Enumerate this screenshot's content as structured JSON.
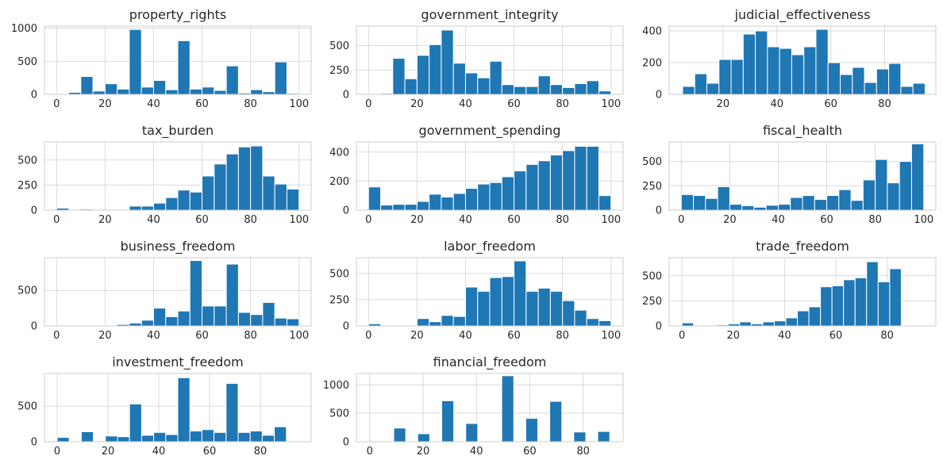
{
  "chart_data": [
    {
      "type": "bar",
      "title": "property_rights",
      "xlim": [
        -5,
        105
      ],
      "ylim": [
        0,
        1030
      ],
      "xticks": [
        0,
        20,
        40,
        60,
        80,
        100
      ],
      "yticks": [
        0,
        500,
        1000
      ],
      "bin_edges": [
        5,
        10,
        15,
        20,
        25,
        30,
        35,
        40,
        45,
        50,
        55,
        60,
        65,
        70,
        75,
        80,
        85,
        90,
        95,
        100
      ],
      "values": [
        30,
        270,
        50,
        160,
        80,
        980,
        110,
        210,
        70,
        810,
        80,
        110,
        60,
        430,
        20,
        70,
        40,
        490,
        15
      ]
    },
    {
      "type": "bar",
      "title": "government_integrity",
      "xlim": [
        -5,
        105
      ],
      "ylim": [
        0,
        700
      ],
      "xticks": [
        0,
        20,
        40,
        60,
        80,
        100
      ],
      "yticks": [
        0,
        250,
        500
      ],
      "bin_edges": [
        5,
        10,
        15,
        20,
        25,
        30,
        35,
        40,
        45,
        50,
        55,
        60,
        65,
        70,
        75,
        80,
        85,
        90,
        95,
        100
      ],
      "values": [
        10,
        370,
        160,
        400,
        510,
        660,
        320,
        220,
        170,
        340,
        100,
        80,
        80,
        190,
        100,
        70,
        110,
        140,
        35
      ]
    },
    {
      "type": "bar",
      "title": "judicial_effectiveness",
      "xlim": [
        0,
        99
      ],
      "ylim": [
        0,
        430
      ],
      "xticks": [
        20,
        40,
        60,
        80
      ],
      "yticks": [
        0,
        200,
        400
      ],
      "bin_edges": [
        5,
        9.5,
        14,
        18.5,
        23,
        27.5,
        32,
        36.5,
        41,
        45.5,
        50,
        54.5,
        59,
        63.5,
        68,
        72.5,
        77,
        81.5,
        86,
        90.5,
        95
      ],
      "values": [
        50,
        130,
        70,
        220,
        220,
        380,
        400,
        300,
        290,
        250,
        300,
        410,
        200,
        125,
        170,
        75,
        160,
        195,
        50,
        70
      ]
    },
    {
      "type": "bar",
      "title": "tax_burden",
      "xlim": [
        -5,
        105
      ],
      "ylim": [
        0,
        680
      ],
      "xticks": [
        0,
        20,
        40,
        60,
        80,
        100
      ],
      "yticks": [
        0,
        250,
        500
      ],
      "bin_edges": [
        0,
        5,
        10,
        15,
        20,
        25,
        30,
        35,
        40,
        45,
        50,
        55,
        60,
        65,
        70,
        75,
        80,
        85,
        90,
        95,
        100
      ],
      "values": [
        20,
        0,
        10,
        0,
        0,
        0,
        40,
        40,
        70,
        125,
        200,
        180,
        340,
        460,
        560,
        630,
        640,
        340,
        260,
        210
      ]
    },
    {
      "type": "bar",
      "title": "government_spending",
      "xlim": [
        -5,
        105
      ],
      "ylim": [
        0,
        470
      ],
      "xticks": [
        0,
        20,
        40,
        60,
        80,
        100
      ],
      "yticks": [
        0,
        200,
        400
      ],
      "bin_edges": [
        0,
        5,
        10,
        15,
        20,
        25,
        30,
        35,
        40,
        45,
        50,
        55,
        60,
        65,
        70,
        75,
        80,
        85,
        90,
        95,
        100
      ],
      "values": [
        160,
        35,
        40,
        40,
        60,
        110,
        90,
        115,
        150,
        180,
        190,
        230,
        270,
        315,
        340,
        380,
        410,
        440,
        440,
        100
      ]
    },
    {
      "type": "bar",
      "title": "fiscal_health",
      "xlim": [
        -5,
        105
      ],
      "ylim": [
        0,
        700
      ],
      "xticks": [
        0,
        20,
        40,
        60,
        80,
        100
      ],
      "yticks": [
        0,
        250,
        500
      ],
      "bin_edges": [
        0,
        5,
        10,
        15,
        20,
        25,
        30,
        35,
        40,
        45,
        50,
        55,
        60,
        65,
        70,
        75,
        80,
        85,
        90,
        95,
        100
      ],
      "values": [
        160,
        150,
        120,
        240,
        60,
        45,
        30,
        50,
        60,
        130,
        150,
        110,
        150,
        210,
        100,
        310,
        520,
        280,
        500,
        680
      ]
    },
    {
      "type": "bar",
      "title": "business_freedom",
      "xlim": [
        -5,
        105
      ],
      "ylim": [
        0,
        960
      ],
      "xticks": [
        0,
        20,
        40,
        60,
        80,
        100
      ],
      "yticks": [
        0,
        500
      ],
      "bin_edges": [
        0,
        5,
        10,
        15,
        20,
        25,
        30,
        35,
        40,
        45,
        50,
        55,
        60,
        65,
        70,
        75,
        80,
        85,
        90,
        95,
        100
      ],
      "values": [
        0,
        0,
        0,
        0,
        10,
        20,
        40,
        80,
        250,
        130,
        210,
        920,
        280,
        280,
        870,
        190,
        160,
        330,
        110,
        100
      ]
    },
    {
      "type": "bar",
      "title": "labor_freedom",
      "xlim": [
        -5,
        105
      ],
      "ylim": [
        0,
        650
      ],
      "xticks": [
        0,
        20,
        40,
        60,
        80,
        100
      ],
      "yticks": [
        0,
        250,
        500
      ],
      "bin_edges": [
        0,
        5,
        10,
        15,
        20,
        25,
        30,
        35,
        40,
        45,
        50,
        55,
        60,
        65,
        70,
        75,
        80,
        85,
        90,
        95,
        100
      ],
      "values": [
        20,
        0,
        0,
        0,
        70,
        40,
        100,
        90,
        370,
        330,
        460,
        470,
        620,
        330,
        360,
        330,
        240,
        150,
        70,
        50
      ]
    },
    {
      "type": "bar",
      "title": "trade_freedom",
      "xlim": [
        -5,
        99
      ],
      "ylim": [
        0,
        680
      ],
      "xticks": [
        0,
        20,
        40,
        60,
        80
      ],
      "yticks": [
        0,
        250,
        500
      ],
      "bin_edges": [
        0,
        4.5,
        9,
        13.5,
        18,
        22.5,
        27,
        31.5,
        36,
        40.5,
        45,
        49.5,
        54,
        58.5,
        63,
        67.5,
        72,
        76.5,
        81,
        85.5,
        90
      ],
      "values": [
        30,
        0,
        0,
        10,
        20,
        40,
        20,
        40,
        50,
        80,
        150,
        190,
        390,
        400,
        460,
        480,
        640,
        440,
        570,
        0
      ]
    },
    {
      "type": "bar",
      "title": "investment_freedom",
      "xlim": [
        -5,
        100
      ],
      "ylim": [
        0,
        960
      ],
      "xticks": [
        0,
        20,
        40,
        60,
        80
      ],
      "yticks": [
        0,
        500
      ],
      "bin_edges": [
        0,
        4.75,
        9.5,
        14.25,
        19,
        23.75,
        28.5,
        33.25,
        38,
        42.75,
        47.5,
        52.25,
        57,
        61.75,
        66.5,
        71.25,
        76,
        80.75,
        85.5,
        90.25,
        95
      ],
      "values": [
        60,
        0,
        140,
        10,
        80,
        70,
        530,
        90,
        130,
        100,
        900,
        150,
        170,
        130,
        820,
        130,
        150,
        90,
        210,
        0
      ]
    },
    {
      "type": "bar",
      "title": "financial_freedom",
      "xlim": [
        -5,
        95
      ],
      "ylim": [
        0,
        1200
      ],
      "xticks": [
        0,
        20,
        40,
        60,
        80
      ],
      "yticks": [
        0,
        500,
        1000
      ],
      "bin_edges": [
        0,
        4.5,
        9,
        13.5,
        18,
        22.5,
        27,
        31.5,
        36,
        40.5,
        45,
        49.5,
        54,
        58.5,
        63,
        67.5,
        72,
        76.5,
        81,
        85.5,
        90
      ],
      "values": [
        0,
        0,
        240,
        0,
        140,
        0,
        720,
        0,
        320,
        0,
        0,
        1160,
        0,
        410,
        0,
        710,
        0,
        170,
        0,
        180
      ]
    }
  ],
  "style": {
    "bar_color": "#1f77b4",
    "bar_edge": "#ffffff",
    "grid_color": "#d9d9d9",
    "spine_color": "#cccccc",
    "text_color": "#262626"
  }
}
